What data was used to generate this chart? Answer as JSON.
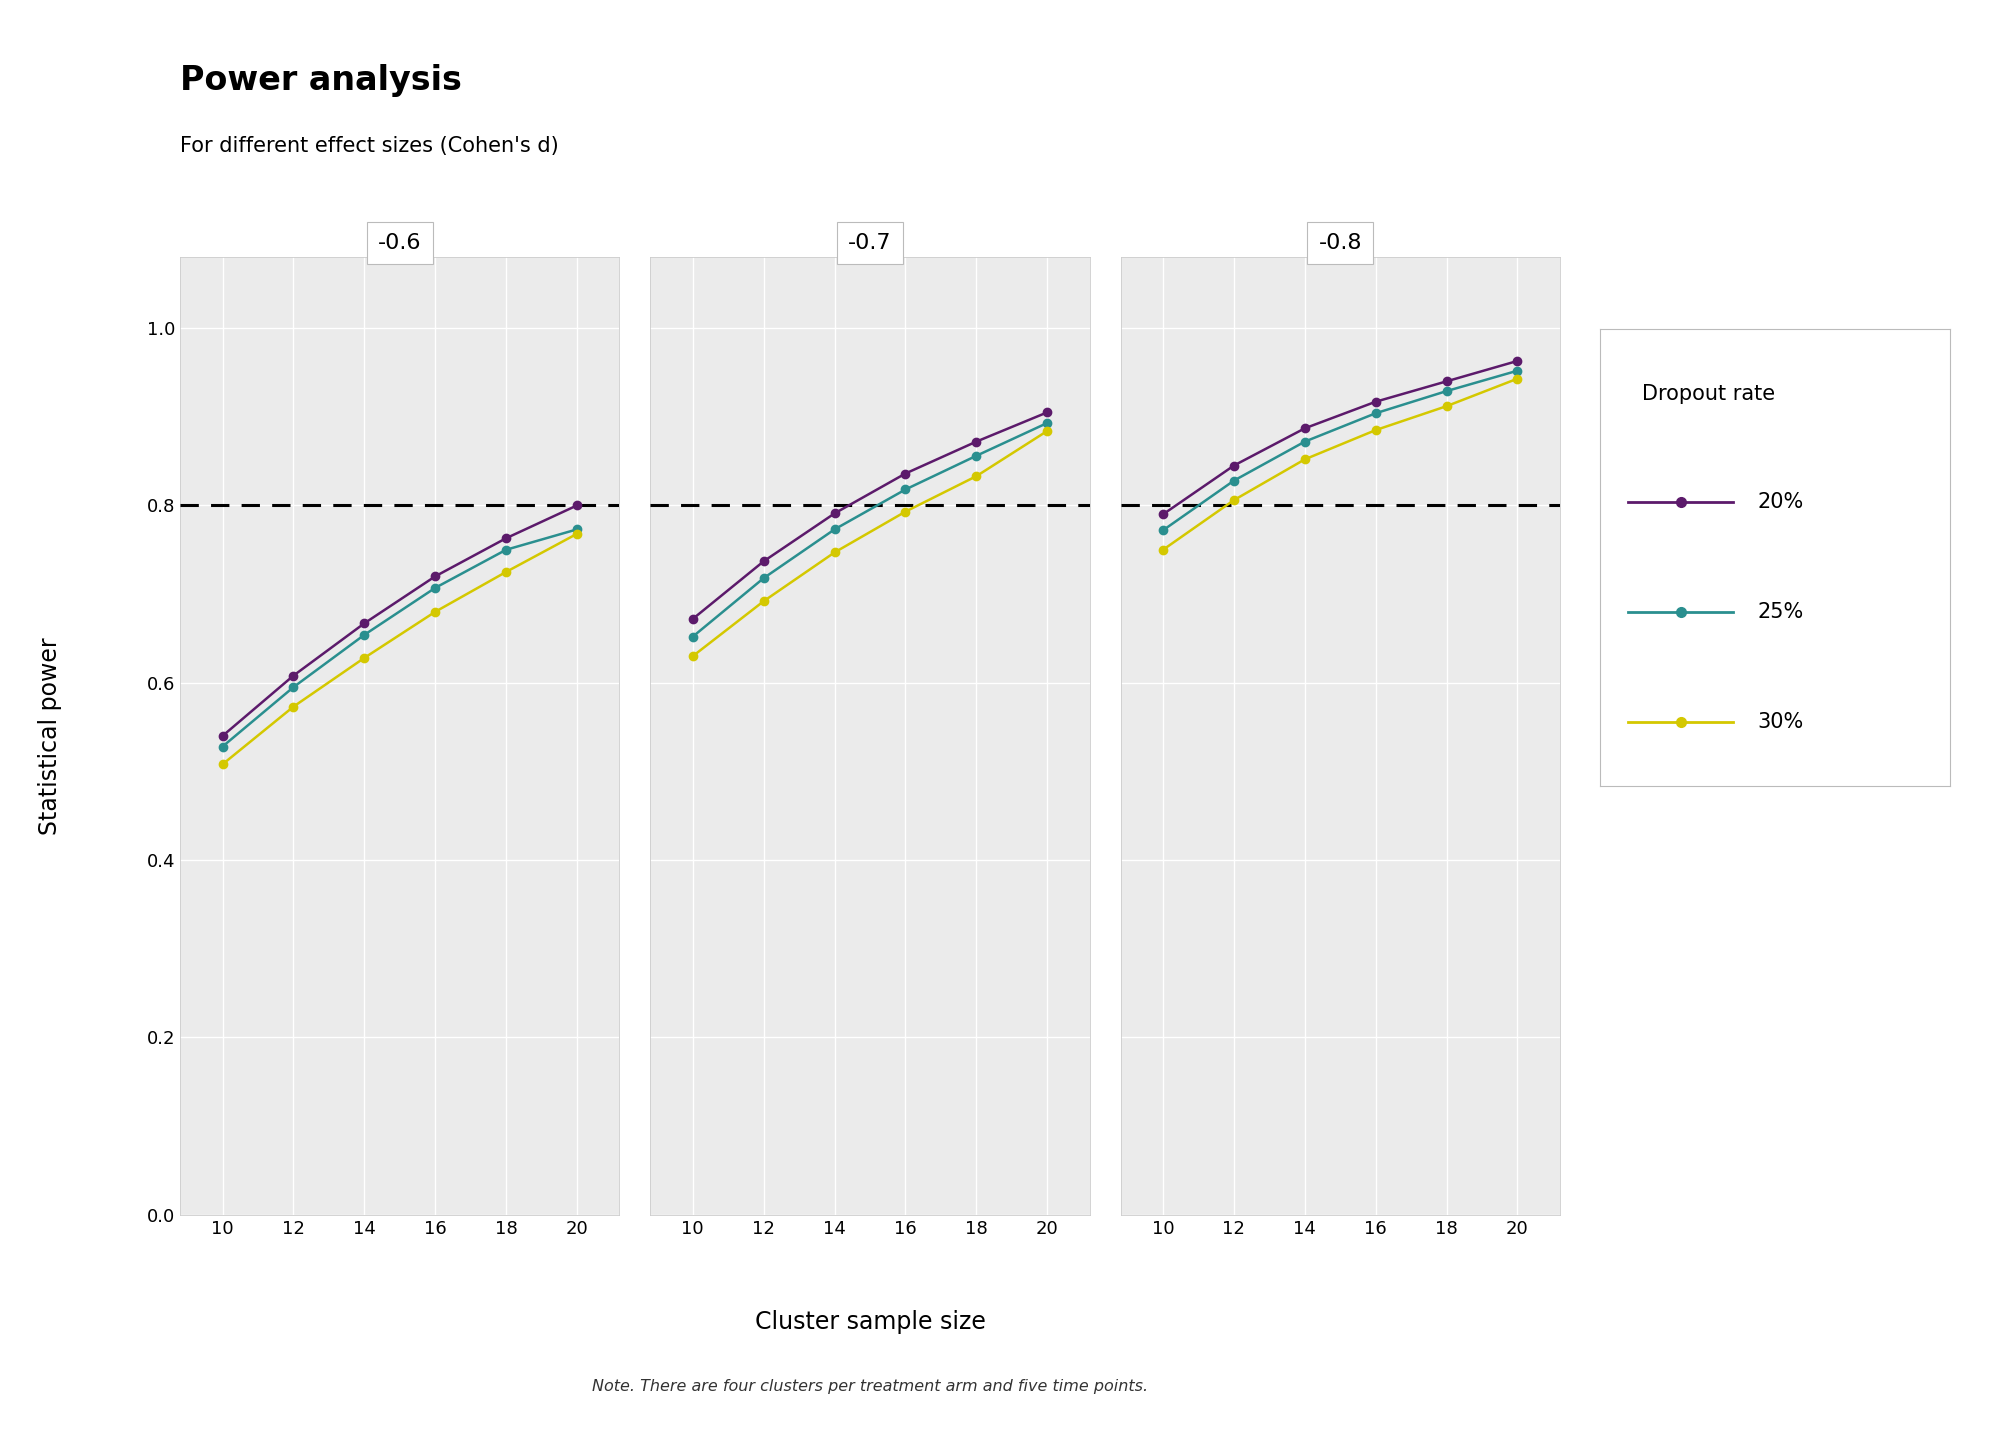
{
  "title": "Power analysis",
  "subtitle": "For different effect sizes (Cohen's d)",
  "xlabel": "Cluster sample size",
  "ylabel": "Statistical power",
  "footnote": "Note. There are four clusters per treatment arm and five time points.",
  "x_values": [
    10,
    12,
    14,
    16,
    18,
    20
  ],
  "panels": [
    {
      "label": "-0.6",
      "data": {
        "20%": [
          0.54,
          0.608,
          0.667,
          0.72,
          0.763,
          0.8
        ],
        "25%": [
          0.528,
          0.595,
          0.654,
          0.707,
          0.75,
          0.773
        ],
        "30%": [
          0.508,
          0.573,
          0.628,
          0.68,
          0.725,
          0.768
        ]
      }
    },
    {
      "label": "-0.7",
      "data": {
        "20%": [
          0.672,
          0.737,
          0.791,
          0.836,
          0.872,
          0.905
        ],
        "25%": [
          0.652,
          0.718,
          0.773,
          0.818,
          0.856,
          0.893
        ],
        "30%": [
          0.63,
          0.692,
          0.747,
          0.793,
          0.833,
          0.884
        ]
      }
    },
    {
      "label": "-0.8",
      "data": {
        "20%": [
          0.79,
          0.845,
          0.887,
          0.917,
          0.94,
          0.963
        ],
        "25%": [
          0.772,
          0.828,
          0.872,
          0.904,
          0.929,
          0.952
        ],
        "30%": [
          0.75,
          0.806,
          0.852,
          0.885,
          0.912,
          0.943
        ]
      }
    }
  ],
  "dropout_colors": {
    "20%": "#5c1a6b",
    "25%": "#2a8f8f",
    "30%": "#d4c800"
  },
  "dropout_labels": [
    "20%",
    "25%",
    "30%"
  ],
  "hline_y": 0.8,
  "ylim": [
    0.0,
    1.08
  ],
  "yticks": [
    0.0,
    0.2,
    0.4,
    0.6,
    0.8,
    1.0
  ],
  "background_color": "#ffffff",
  "panel_bg_color": "#ebebeb",
  "grid_color": "#ffffff",
  "title_fontsize": 24,
  "subtitle_fontsize": 15,
  "axis_label_fontsize": 17,
  "tick_fontsize": 13,
  "legend_title_fontsize": 15,
  "legend_fontsize": 15,
  "panel_label_fontsize": 16
}
